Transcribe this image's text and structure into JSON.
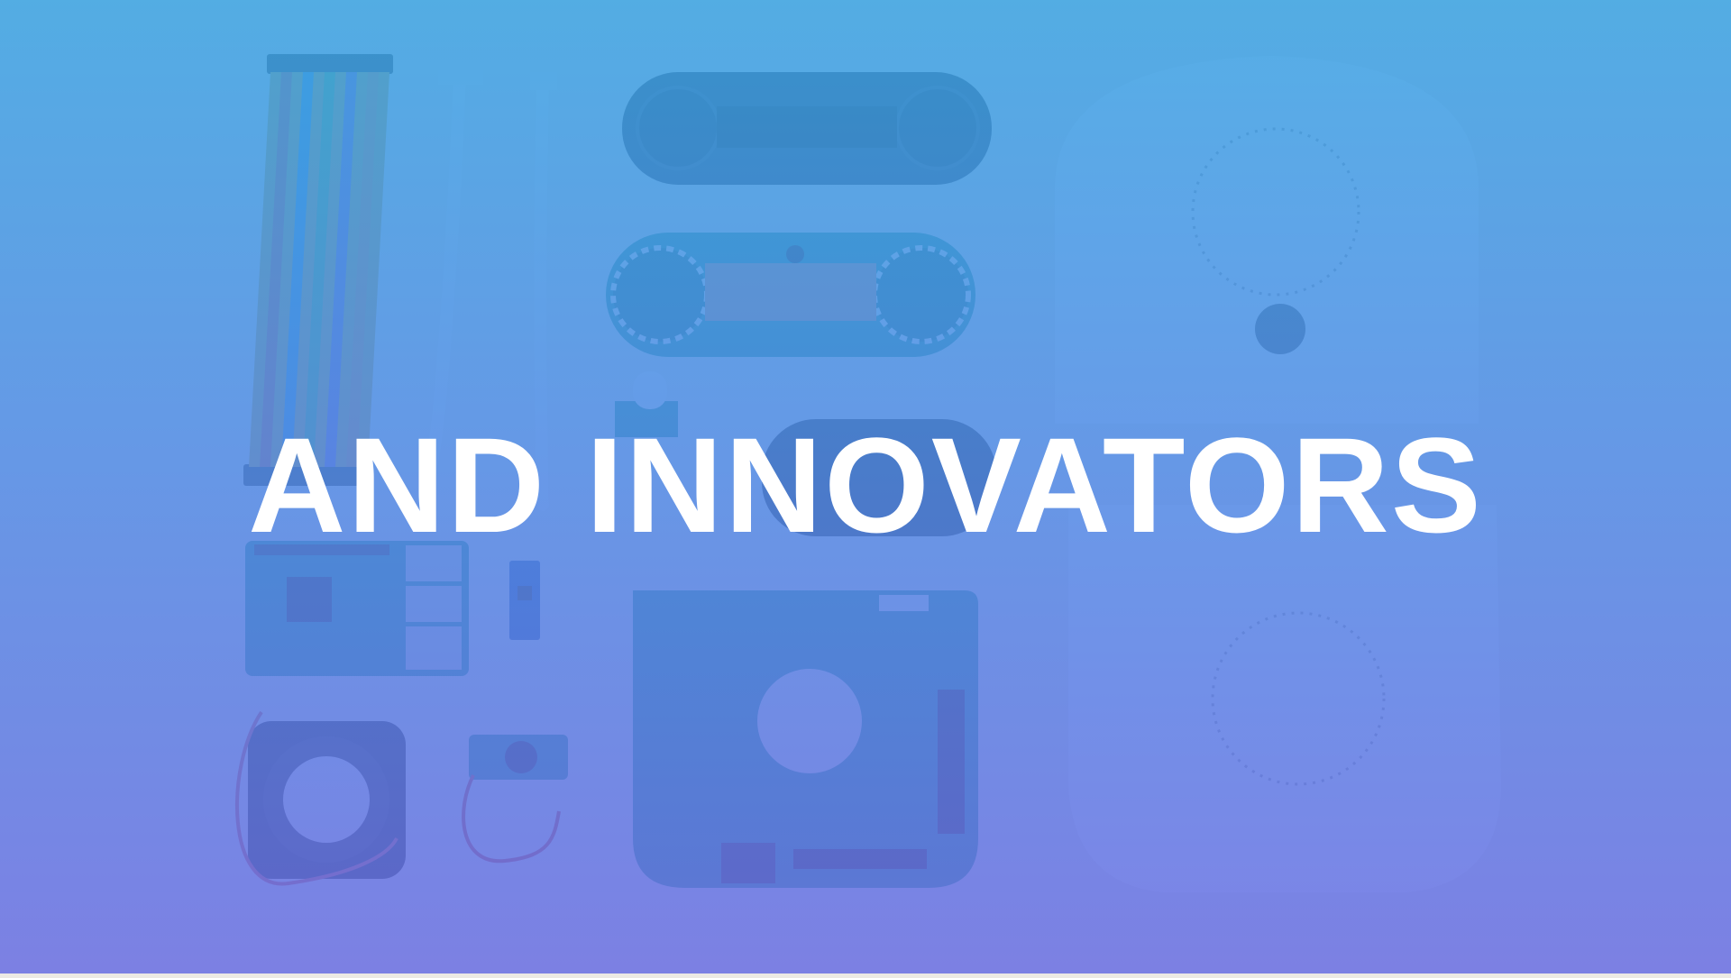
{
  "headline": {
    "text": "AND INNOVATORS"
  },
  "colors": {
    "overlay_top": "#3aa3e3",
    "overlay_mid": "#4f8ce6",
    "overlay_bottom": "#6a6fe3",
    "headline": "#ffffff",
    "pcb": "#1f8f78",
    "shell": "#fafafa"
  },
  "photo_components": [
    "ribbon-cable",
    "connector-cable",
    "front-face-cover",
    "led-display-board",
    "push-button-module",
    "raspberry-pi-board",
    "arduino-nano-board",
    "speaker",
    "microphone-board",
    "main-pcb",
    "robot-top-shell",
    "robot-bottom-shell"
  ]
}
